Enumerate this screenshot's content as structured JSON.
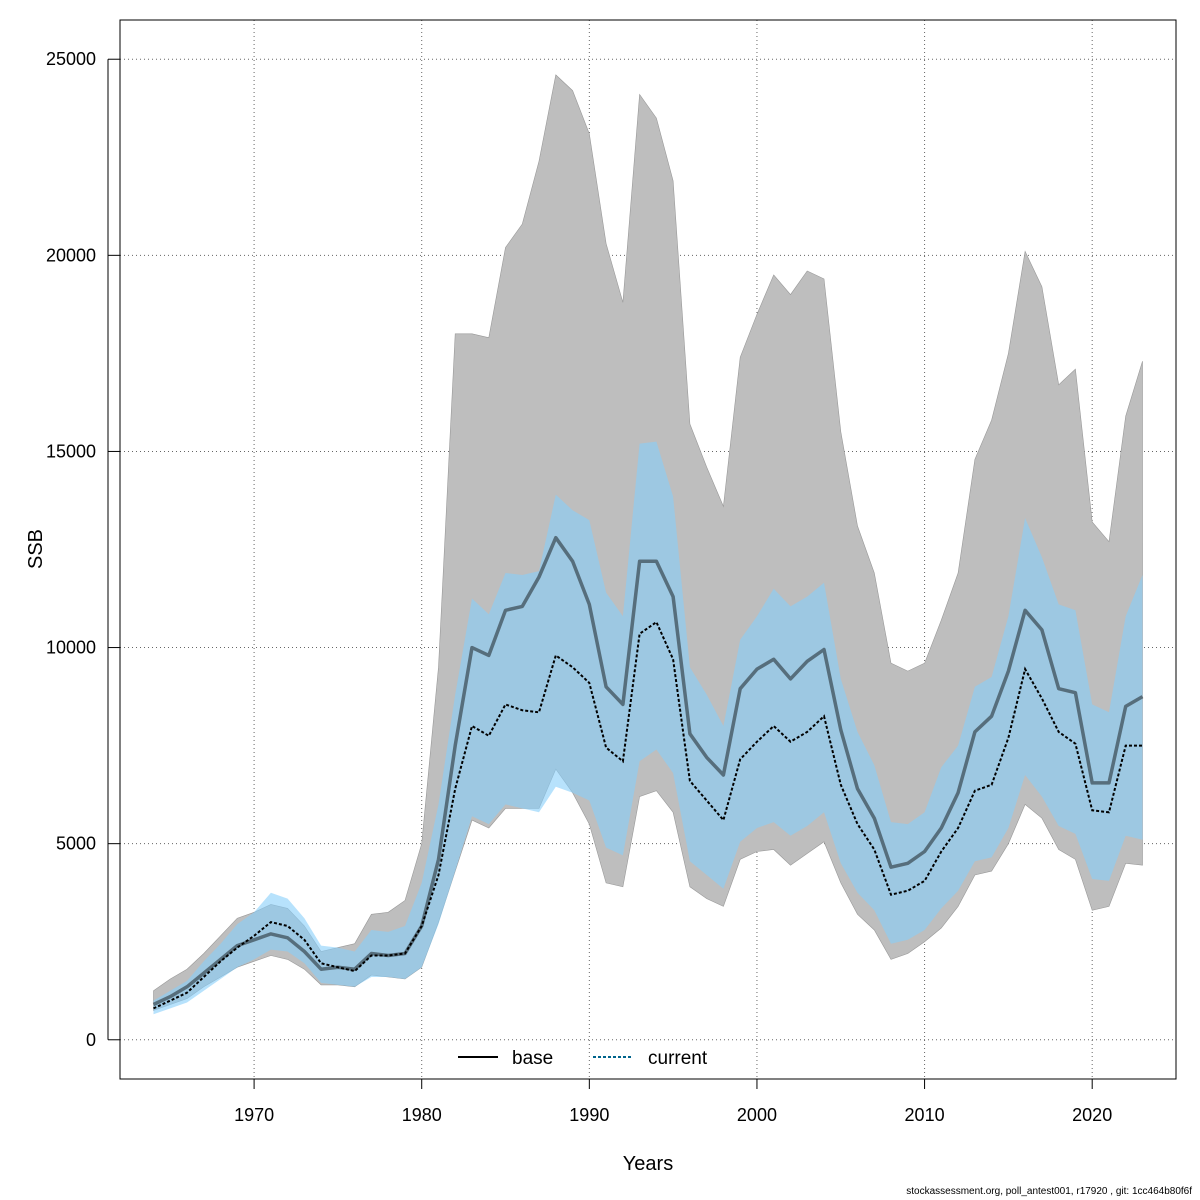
{
  "chart_data": {
    "type": "line",
    "xlabel": "Years",
    "ylabel": "SSB",
    "xlim": [
      1962,
      2025
    ],
    "ylim": [
      -1000,
      26000
    ],
    "xticks": [
      1970,
      1980,
      1990,
      2000,
      2010,
      2020
    ],
    "yticks": [
      0,
      5000,
      10000,
      15000,
      20000,
      25000
    ],
    "grid": true,
    "legend_position": "bottom",
    "x": [
      1964,
      1965,
      1966,
      1967,
      1968,
      1969,
      1970,
      1971,
      1972,
      1973,
      1974,
      1975,
      1976,
      1977,
      1978,
      1979,
      1980,
      1981,
      1982,
      1983,
      1984,
      1985,
      1986,
      1987,
      1988,
      1989,
      1990,
      1991,
      1992,
      1993,
      1994,
      1995,
      1996,
      1997,
      1998,
      1999,
      2000,
      2001,
      2002,
      2003,
      2004,
      2005,
      2006,
      2007,
      2008,
      2009,
      2010,
      2011,
      2012,
      2013,
      2014,
      2015,
      2016,
      2017,
      2018,
      2019,
      2020,
      2021,
      2022,
      2023
    ],
    "series": [
      {
        "name": "base",
        "color": "#000000",
        "band_color": "#bebebe",
        "line_style": "solid",
        "values": [
          900,
          1100,
          1350,
          1700,
          2050,
          2400,
          2550,
          2700,
          2600,
          2250,
          1800,
          1850,
          1800,
          2200,
          2150,
          2200,
          2900,
          4600,
          7500,
          10000,
          9800,
          10950,
          11050,
          11800,
          12800,
          12200,
          11100,
          9000,
          8550,
          12200,
          12200,
          11300,
          7800,
          7200,
          6750,
          8950,
          9450,
          9700,
          9200,
          9650,
          9950,
          7900,
          6400,
          5650,
          4400,
          4500,
          4800,
          5400,
          6300,
          7850,
          8250,
          9400,
          10950,
          10450,
          8950,
          8850,
          6550,
          6550,
          8500,
          8750
        ],
        "lower": [
          750,
          900,
          1050,
          1350,
          1600,
          1850,
          2000,
          2150,
          2050,
          1800,
          1400,
          1400,
          1350,
          1650,
          1600,
          1550,
          1850,
          3000,
          4300,
          5600,
          5400,
          5900,
          5900,
          5900,
          6900,
          6300,
          5500,
          4000,
          3900,
          6200,
          6350,
          5800,
          3900,
          3600,
          3400,
          4600,
          4800,
          4850,
          4450,
          4750,
          5050,
          4000,
          3200,
          2800,
          2050,
          2200,
          2500,
          2850,
          3400,
          4200,
          4300,
          5000,
          6000,
          5650,
          4850,
          4600,
          3300,
          3400,
          4500,
          4450
        ],
        "upper": [
          1250,
          1550,
          1800,
          2200,
          2650,
          3100,
          3250,
          3450,
          3350,
          2900,
          2250,
          2350,
          2450,
          3200,
          3250,
          3550,
          5000,
          9500,
          18000,
          18000,
          17900,
          20200,
          20800,
          22400,
          24600,
          24200,
          23100,
          20300,
          18800,
          24100,
          23500,
          21900,
          15700,
          14600,
          13600,
          17400,
          18500,
          19500,
          19000,
          19600,
          19400,
          15500,
          13100,
          11900,
          9600,
          9400,
          9600,
          10700,
          11900,
          14800,
          15800,
          17500,
          20100,
          19200,
          16700,
          17100,
          13200,
          12700,
          15900,
          17300
        ]
      },
      {
        "name": "current",
        "color": "#00648c",
        "band_color": "#87cefa",
        "line_style": "dashed",
        "values": [
          800,
          1000,
          1200,
          1600,
          2000,
          2350,
          2650,
          3000,
          2900,
          2550,
          1950,
          1850,
          1750,
          2150,
          2150,
          2200,
          2900,
          4200,
          6400,
          8000,
          7750,
          8550,
          8400,
          8350,
          9800,
          9500,
          9100,
          7450,
          7100,
          10350,
          10650,
          9700,
          6600,
          6100,
          5600,
          7150,
          7600,
          8000,
          7600,
          7850,
          8250,
          6500,
          5500,
          4850,
          3700,
          3800,
          4050,
          4800,
          5400,
          6350,
          6500,
          7700,
          9450,
          8700,
          7850,
          7550,
          5850,
          5800,
          7500,
          7500
        ],
        "lower": [
          650,
          800,
          950,
          1250,
          1550,
          1850,
          2050,
          2300,
          2250,
          1950,
          1450,
          1400,
          1350,
          1600,
          1600,
          1550,
          1850,
          2950,
          4300,
          5700,
          5500,
          6000,
          5900,
          5800,
          6450,
          6300,
          6100,
          4900,
          4700,
          7100,
          7400,
          6800,
          4550,
          4200,
          3850,
          5050,
          5400,
          5550,
          5200,
          5450,
          5800,
          4500,
          3750,
          3300,
          2450,
          2550,
          2800,
          3350,
          3800,
          4550,
          4650,
          5400,
          6750,
          6200,
          5450,
          5250,
          4100,
          4050,
          5200,
          5100
        ],
        "upper": [
          1000,
          1250,
          1500,
          2000,
          2450,
          2950,
          3250,
          3750,
          3600,
          3100,
          2400,
          2350,
          2250,
          2800,
          2750,
          2900,
          4000,
          6000,
          8800,
          11250,
          10850,
          11900,
          11850,
          11950,
          13900,
          13500,
          13250,
          11400,
          10800,
          15200,
          15250,
          13850,
          9500,
          8800,
          8000,
          10200,
          10800,
          11500,
          11050,
          11300,
          11650,
          9200,
          7850,
          7000,
          5550,
          5500,
          5800,
          6950,
          7500,
          9000,
          9250,
          10800,
          13300,
          12300,
          11100,
          10950,
          8550,
          8350,
          10800,
          11850
        ]
      }
    ]
  },
  "credit": "stockassessment.org, poll_antest001, r17920 , git: 1cc464b80f6f"
}
